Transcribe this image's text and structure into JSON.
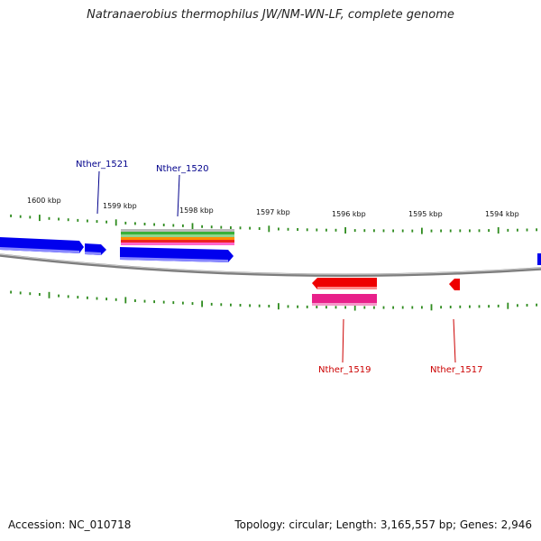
{
  "title": "Natranaerobius thermophilus JW/NM-WN-LF, complete genome",
  "accession": "Accession: NC_010718",
  "summary": "Topology: circular; Length: 3,165,557 bp; Genes: 2,946",
  "colors": {
    "backbone": "#888888",
    "tick": "#2e8b1e",
    "forward_gene": "#0000ee",
    "reverse_gene": "#ee0000",
    "reverse_rna": "#e8208a",
    "label_forward": "#00008b",
    "label_reverse": "#cc0000"
  },
  "scale_labels": [
    "1600 kbp",
    "1599 kbp",
    "1598 kbp",
    "1597 kbp",
    "1596 kbp",
    "1595 kbp",
    "1594 kbp"
  ],
  "gene_labels": {
    "nther_1521": "Nther_1521",
    "nther_1520": "Nther_1520",
    "nther_1519": "Nther_1519",
    "nther_1517": "Nther_1517"
  }
}
